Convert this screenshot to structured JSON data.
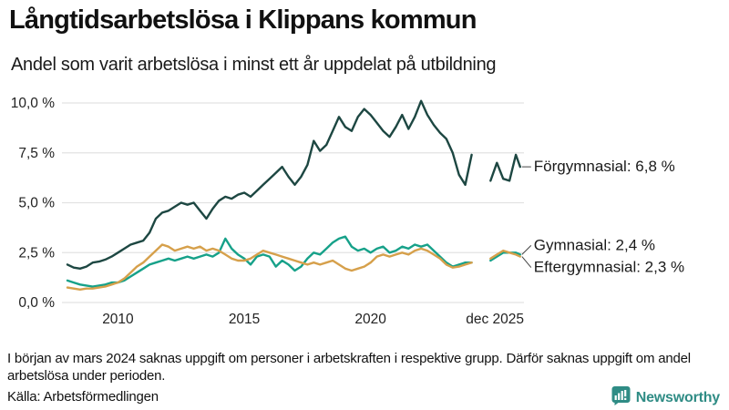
{
  "header": {
    "title": "Långtidsarbetslösa i Klippans kommun",
    "subtitle": "Andel som varit arbetslösa i minst ett år uppdelat på utbildning"
  },
  "footer": {
    "note": "I början av mars 2024 saknas uppgift om personer i arbetskraften i respektive grupp. Därför saknas uppgift om andel arbetslösa under perioden.",
    "source": "Källa: Arbetsförmedlingen",
    "brand": "Newsworthy"
  },
  "colors": {
    "forgymnasial": "#1d4742",
    "gymnasial": "#16a189",
    "eftergymnasial": "#d6a04b",
    "grid": "#e2e2e2",
    "text": "#111111",
    "brand_teal": "#2f8c85"
  },
  "chart_data": {
    "type": "line",
    "title": "Långtidsarbetslösa i Klippans kommun",
    "subtitle": "Andel som varit arbetslösa i minst ett år uppdelat på utbildning",
    "ylim": [
      0,
      10
    ],
    "grid": "horizontal",
    "legend_position": "right-end-labels",
    "x_unit": "decimal year, quarterly points, gap = missing data from mars 2024",
    "missing_period_x": [
      2024.25,
      2024.5
    ],
    "y_ticks": [
      {
        "value": 0,
        "label": "0,0 %"
      },
      {
        "value": 2.5,
        "label": "2,5 %"
      },
      {
        "value": 5,
        "label": "5,0 %"
      },
      {
        "value": 7.5,
        "label": "7,5 %"
      },
      {
        "value": 10,
        "label": "10,0 %"
      }
    ],
    "x_ticks": [
      {
        "year": 2010,
        "label": "2010"
      },
      {
        "year": 2015,
        "label": "2015"
      },
      {
        "year": 2020,
        "label": "2020"
      },
      {
        "year": 2025.92,
        "label": "dec 2025",
        "align": "right"
      }
    ],
    "x": [
      2008,
      2008.25,
      2008.5,
      2008.75,
      2009,
      2009.25,
      2009.5,
      2009.75,
      2010,
      2010.25,
      2010.5,
      2010.75,
      2011,
      2011.25,
      2011.5,
      2011.75,
      2012,
      2012.25,
      2012.5,
      2012.75,
      2013,
      2013.25,
      2013.5,
      2013.75,
      2014,
      2014.25,
      2014.5,
      2014.75,
      2015,
      2015.25,
      2015.5,
      2015.75,
      2016,
      2016.25,
      2016.5,
      2016.75,
      2017,
      2017.25,
      2017.5,
      2017.75,
      2018,
      2018.25,
      2018.5,
      2018.75,
      2019,
      2019.25,
      2019.5,
      2019.75,
      2020,
      2020.25,
      2020.5,
      2020.75,
      2021,
      2021.25,
      2021.5,
      2021.75,
      2022,
      2022.25,
      2022.5,
      2022.75,
      2023,
      2023.25,
      2023.5,
      2023.75,
      2024,
      2024.25,
      2024.5,
      2024.75,
      2025,
      2025.25,
      2025.5,
      2025.75,
      2025.92
    ],
    "series": [
      {
        "name": "Förgymnasial",
        "end_label": "Förgymnasial: 6,8 %",
        "end_value": "6,8 %",
        "color": "#1d4742",
        "values": [
          1.9,
          1.75,
          1.7,
          1.8,
          2.0,
          2.05,
          2.15,
          2.3,
          2.5,
          2.7,
          2.9,
          3.0,
          3.1,
          3.5,
          4.2,
          4.5,
          4.6,
          4.8,
          5.0,
          4.9,
          5.0,
          4.6,
          4.2,
          4.7,
          5.1,
          5.3,
          5.2,
          5.4,
          5.5,
          5.3,
          5.6,
          5.9,
          6.2,
          6.5,
          6.8,
          6.3,
          5.9,
          6.3,
          6.9,
          8.1,
          7.6,
          7.9,
          8.6,
          9.3,
          8.8,
          8.6,
          9.3,
          9.7,
          9.4,
          9.0,
          8.6,
          8.3,
          8.8,
          9.4,
          8.7,
          9.3,
          10.1,
          9.4,
          8.9,
          8.5,
          8.2,
          7.5,
          6.4,
          5.9,
          7.4,
          null,
          null,
          6.1,
          7.0,
          6.2,
          6.1,
          7.4,
          6.8
        ]
      },
      {
        "name": "Gymnasial",
        "end_label": "Gymnasial: 2,4 %",
        "end_value": "2,4 %",
        "color": "#16a189",
        "values": [
          1.1,
          1.0,
          0.9,
          0.85,
          0.8,
          0.85,
          0.9,
          1.0,
          1.0,
          1.1,
          1.3,
          1.5,
          1.7,
          1.9,
          2.0,
          2.1,
          2.2,
          2.1,
          2.2,
          2.3,
          2.2,
          2.3,
          2.4,
          2.3,
          2.5,
          3.2,
          2.7,
          2.4,
          2.2,
          1.9,
          2.3,
          2.4,
          2.3,
          1.8,
          2.1,
          1.9,
          1.6,
          1.8,
          2.2,
          2.5,
          2.4,
          2.7,
          3.0,
          3.2,
          3.3,
          2.8,
          2.6,
          2.7,
          2.5,
          2.7,
          2.8,
          2.5,
          2.6,
          2.8,
          2.7,
          2.9,
          2.8,
          2.9,
          2.6,
          2.3,
          2.0,
          1.8,
          1.9,
          2.0,
          2.0,
          null,
          null,
          2.1,
          2.3,
          2.5,
          2.5,
          2.5,
          2.4
        ]
      },
      {
        "name": "Eftergymnasial",
        "end_label": "Eftergymnasial: 2,3 %",
        "end_value": "2,3 %",
        "color": "#d6a04b",
        "values": [
          0.75,
          0.7,
          0.65,
          0.7,
          0.7,
          0.75,
          0.8,
          0.9,
          1.0,
          1.2,
          1.5,
          1.8,
          2.0,
          2.3,
          2.6,
          2.9,
          2.8,
          2.6,
          2.7,
          2.8,
          2.7,
          2.8,
          2.6,
          2.7,
          2.6,
          2.4,
          2.2,
          2.1,
          2.1,
          2.2,
          2.4,
          2.6,
          2.5,
          2.4,
          2.3,
          2.2,
          2.1,
          2.0,
          1.9,
          2.0,
          1.9,
          2.0,
          2.1,
          1.9,
          1.7,
          1.6,
          1.7,
          1.8,
          2.0,
          2.3,
          2.4,
          2.3,
          2.4,
          2.5,
          2.4,
          2.6,
          2.7,
          2.6,
          2.4,
          2.2,
          1.9,
          1.75,
          1.8,
          1.9,
          2.0,
          null,
          null,
          2.2,
          2.4,
          2.6,
          2.5,
          2.4,
          2.3
        ]
      }
    ]
  }
}
